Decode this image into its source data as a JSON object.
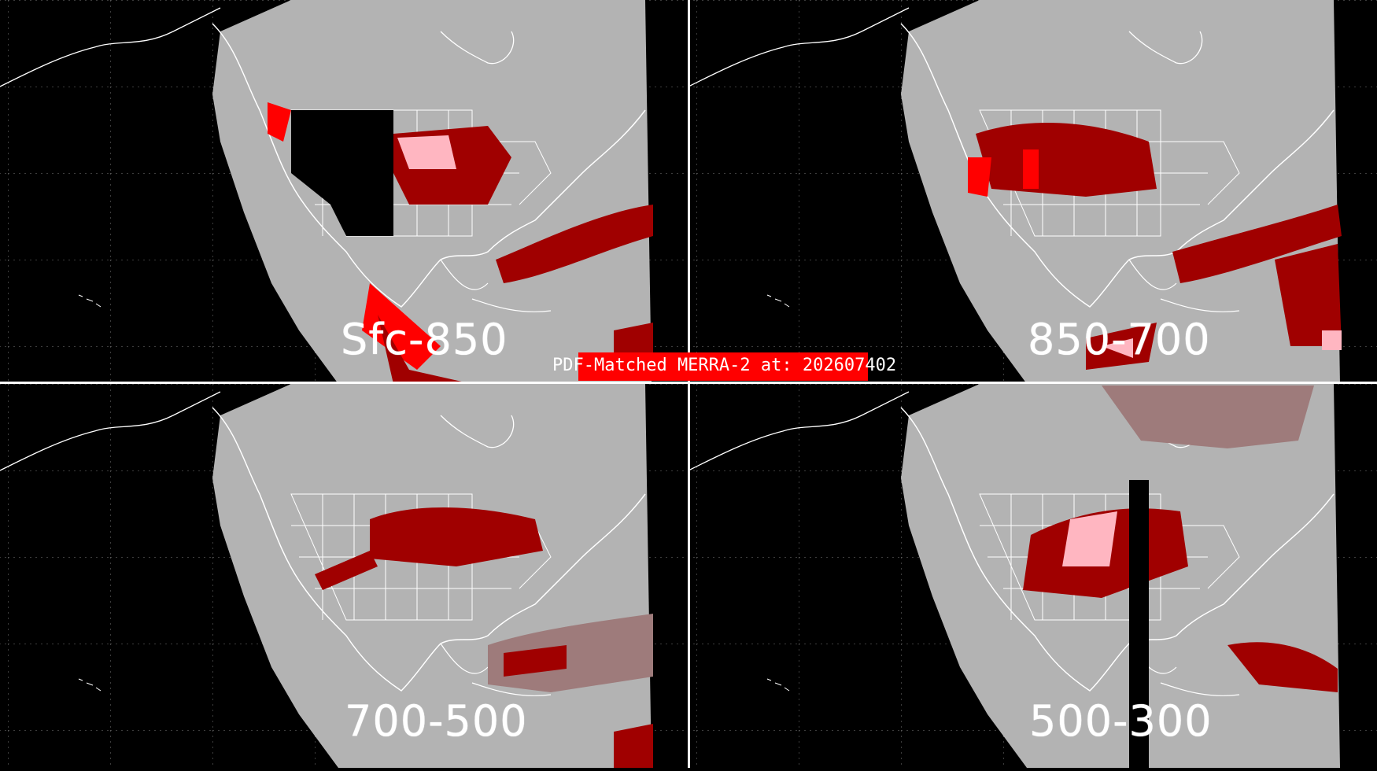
{
  "title": "PDF-Matched MERRA-2 at: 202607402",
  "panels": [
    {
      "id": "tl",
      "label": "Sfc-850"
    },
    {
      "id": "tr",
      "label": "850-700"
    },
    {
      "id": "bl",
      "label": "700-500"
    },
    {
      "id": "br",
      "label": "500-300"
    }
  ],
  "colors": {
    "background": "#000000",
    "land_mask": "#b3b3b3",
    "category_low": "#9e7b7b",
    "category_mid": "#a00000",
    "category_high": "#ff0000",
    "category_top": "#ffb6c1",
    "coastlines": "#ffffff",
    "title_box": "#ff0000"
  }
}
